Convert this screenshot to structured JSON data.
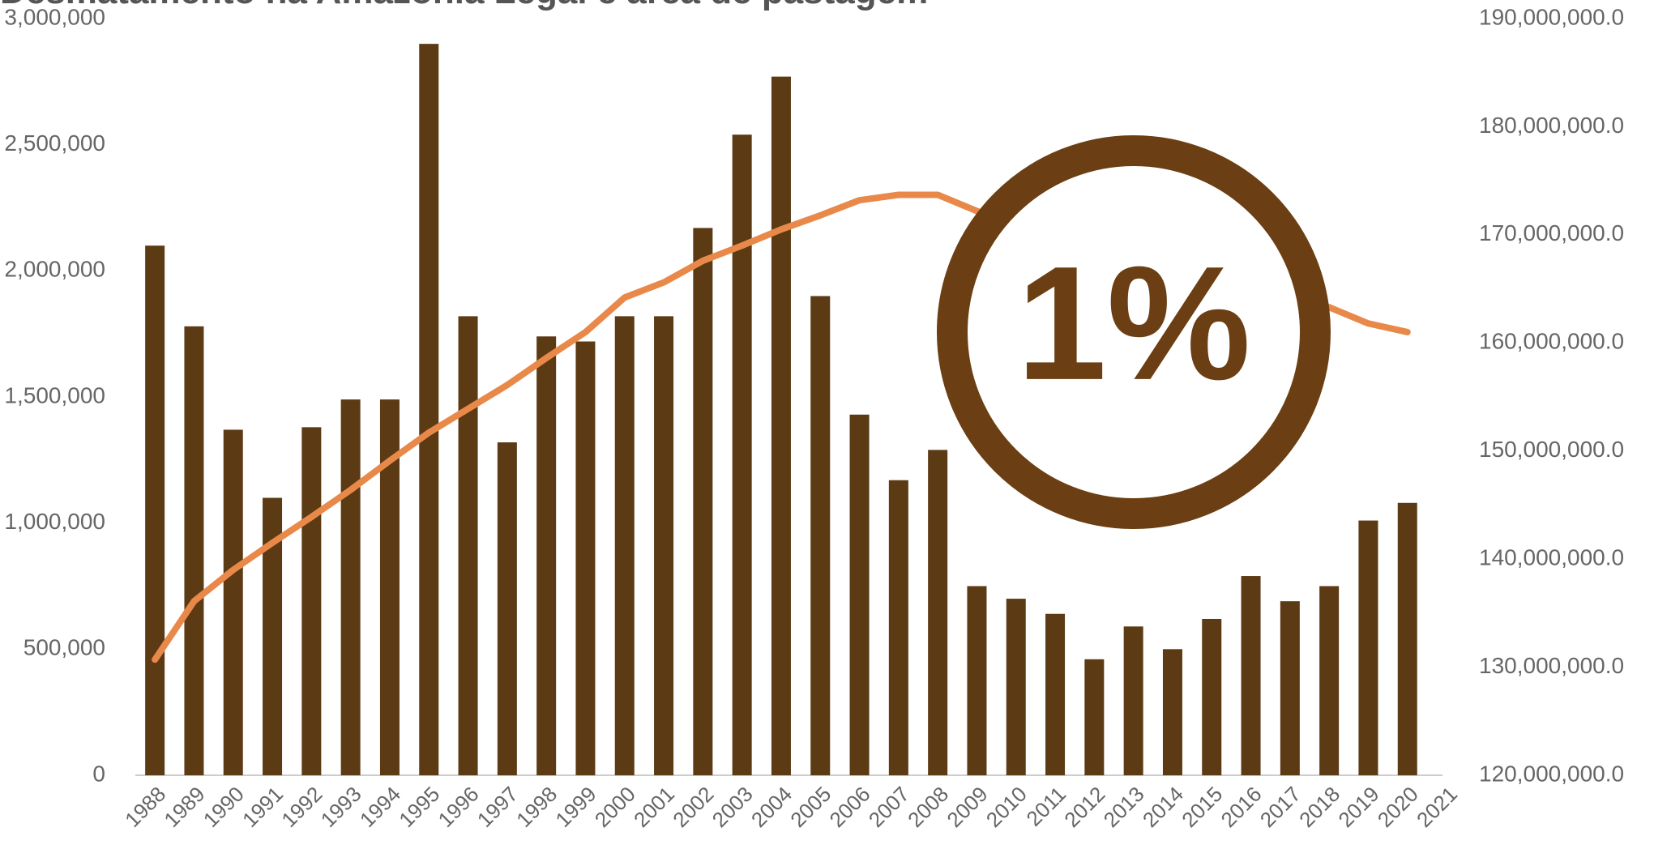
{
  "chart_data": {
    "type": "bar-line",
    "title": "Desmatamento na Amazônia Legal e área de pastagem",
    "categories": [
      "1988",
      "1989",
      "1990",
      "1991",
      "1992",
      "1993",
      "1994",
      "1995",
      "1996",
      "1997",
      "1998",
      "1999",
      "2000",
      "2001",
      "2002",
      "2003",
      "2004",
      "2005",
      "2006",
      "2007",
      "2008",
      "2009",
      "2010",
      "2011",
      "2012",
      "2013",
      "2014",
      "2015",
      "2016",
      "2017",
      "2018",
      "2019",
      "2020",
      "2021"
    ],
    "series": [
      {
        "type": "bar",
        "color": "#5c3a14",
        "values": [
          2100000,
          1780000,
          1370000,
          1100000,
          1380000,
          1490000,
          1490000,
          2900000,
          1820000,
          1320000,
          1740000,
          1720000,
          1820000,
          1820000,
          2170000,
          2540000,
          2770000,
          1900000,
          1430000,
          1170000,
          1290000,
          750000,
          700000,
          640000,
          460000,
          590000,
          500000,
          620000,
          790000,
          690000,
          750000,
          1010000,
          1080000,
          null
        ]
      },
      {
        "type": "line",
        "axis": "y2",
        "color": "#e8894a",
        "values": [
          130700000,
          136100000,
          139000000,
          141500000,
          143900000,
          146400000,
          149100000,
          151700000,
          153900000,
          156100000,
          158600000,
          161000000,
          164200000,
          165600000,
          167600000,
          169000000,
          170500000,
          171800000,
          173200000,
          173700000,
          173700000,
          172200000,
          170800000,
          169300000,
          167900000,
          166600000,
          165600000,
          164900000,
          164400000,
          163900000,
          163300000,
          161800000,
          161000000,
          null
        ]
      }
    ],
    "ylim": [
      0,
      3000000
    ],
    "yticks": [
      0,
      {
        "value": 500000,
        "label": "500,000"
      },
      {
        "value": 1000000,
        "label": "1,000,000"
      },
      {
        "value": 1500000,
        "label": "1,500,000"
      },
      {
        "value": 2000000,
        "label": "2,000,000"
      },
      {
        "value": 2500000,
        "label": "2,500,000"
      },
      {
        "value": 3000000,
        "label": "3,000,000"
      }
    ],
    "y2lim": [
      120000000,
      190000000
    ],
    "y2ticks": [
      {
        "value": 120000000,
        "label": "120,000,000.0"
      },
      {
        "value": 130000000,
        "label": "130,000,000.0"
      },
      {
        "value": 140000000,
        "label": "140,000,000.0"
      },
      {
        "value": 150000000,
        "label": "150,000,000.0"
      },
      {
        "value": 160000000,
        "label": "160,000,000.0"
      },
      {
        "value": 170000000,
        "label": "170,000,000.0"
      },
      {
        "value": 180000000,
        "label": "180,000,000.0"
      },
      {
        "value": 190000000,
        "label": "190,000,000.0"
      }
    ],
    "annotation": "1%"
  }
}
